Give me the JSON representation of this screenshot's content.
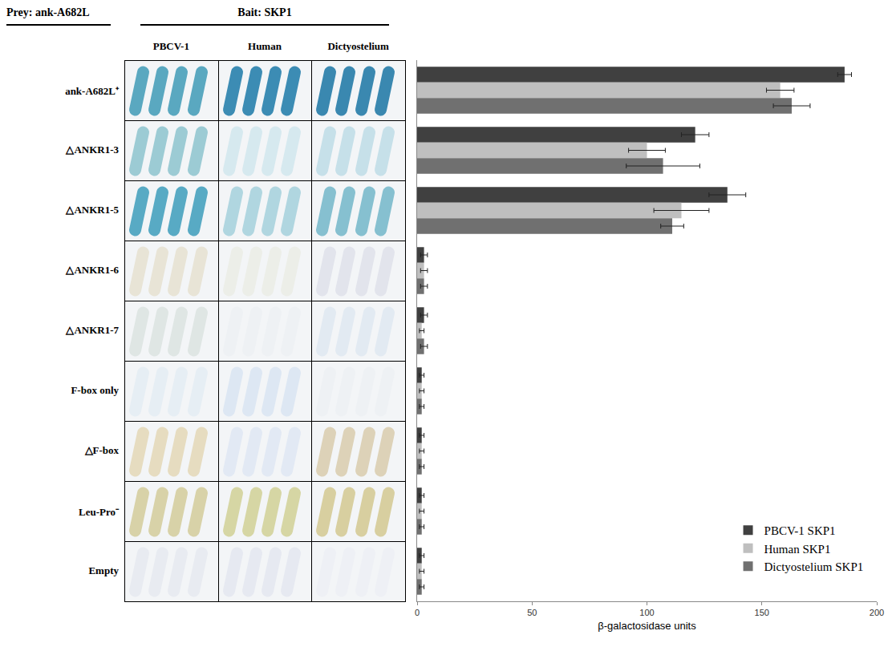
{
  "panel": {
    "prey_label": "Prey: ank-A682L",
    "bait_label": "Bait: SKP1",
    "columns": [
      "PBCV-1",
      "Human",
      "Dictyostelium"
    ],
    "cell_colors": [
      [
        "#5aa8c0",
        "#3c8cb4",
        "#3a88b0"
      ],
      [
        "#9ccbd4",
        "#d6e9ef",
        "#c6e0e9"
      ],
      [
        "#58aac4",
        "#b0d6e0",
        "#86c0d0"
      ],
      [
        "#e8e4d6",
        "#eceee8",
        "#e2e4ec"
      ],
      [
        "#dfe6e4",
        "#eef1f4",
        "#e2eaf2"
      ],
      [
        "#e6eef4",
        "#dde7f3",
        "#eef1f4"
      ],
      [
        "#e6dcc0",
        "#e2e9f4",
        "#ddd2b8"
      ],
      [
        "#d8d2a8",
        "#d6d6a4",
        "#d8cfa0"
      ],
      [
        "#e8ebf1",
        "#e6e9f1",
        "#eef0f5"
      ]
    ]
  },
  "chart_data": {
    "type": "bar",
    "orientation": "horizontal",
    "categories": [
      "ank-A682L⁺",
      "△ANKR1-3",
      "△ANKR1-5",
      "△ANKR1-6",
      "△ANKR1-7",
      "F-box only",
      "△F-box",
      "Leu-Pro⁻",
      "Empty"
    ],
    "series": [
      {
        "name": "PBCV-1 SKP1",
        "color": "#404040",
        "values": [
          186,
          121,
          135,
          3,
          3,
          2,
          2,
          2,
          2
        ],
        "error": [
          3,
          6,
          8,
          1.5,
          1.5,
          1,
          1,
          1,
          1
        ]
      },
      {
        "name": "Human SKP1",
        "color": "#bfbfbf",
        "values": [
          158,
          100,
          115,
          3,
          2,
          2,
          2,
          2,
          2
        ],
        "error": [
          6,
          8,
          12,
          1.5,
          1,
          1,
          1,
          1,
          1
        ]
      },
      {
        "name": "Dictyostelium SKP1",
        "color": "#707070",
        "values": [
          163,
          107,
          111,
          3,
          3,
          2,
          2,
          2,
          2
        ],
        "error": [
          8,
          16,
          5,
          1.5,
          1.5,
          1,
          1,
          1,
          1
        ]
      }
    ],
    "xlabel": "β-galactosidase units",
    "xlim": [
      0,
      200
    ],
    "xticks": [
      0,
      50,
      100,
      150,
      200
    ],
    "legend": "lower right",
    "tick_labels": "x",
    "grid": false
  }
}
